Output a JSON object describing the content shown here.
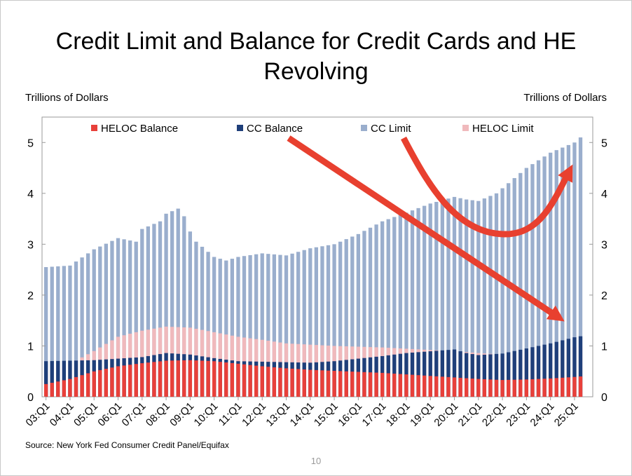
{
  "slide": {
    "title_line1": "Credit Limit and Balance for Credit Cards and HE",
    "title_line2": "Revolving",
    "left_axis_label": "Trillions of Dollars",
    "right_axis_label": "Trillions of Dollars",
    "source": "Source: New York Fed Consumer Credit Panel/Equifax",
    "page_number": "10"
  },
  "colors": {
    "heloc_balance": "#e8403a",
    "cc_balance": "#1f3f7a",
    "cc_limit": "#9aaecd",
    "heloc_limit": "#f0b9bc",
    "arrow": "#e8402f"
  },
  "chart_data": {
    "type": "bar",
    "title": "Credit Limit and Balance for Credit Cards and HE Revolving",
    "ylabel_left": "Trillions of Dollars",
    "ylabel_right": "Trillions of Dollars",
    "ylim": [
      0,
      5.5
    ],
    "yticks": [
      0,
      1,
      2,
      3,
      4,
      5
    ],
    "x_tick_labels": [
      "03:Q1",
      "04:Q1",
      "05:Q1",
      "06:Q1",
      "07:Q1",
      "08:Q1",
      "09:Q1",
      "10:Q1",
      "11:Q1",
      "12:Q1",
      "13:Q1",
      "14:Q1",
      "15:Q1",
      "16:Q1",
      "17:Q1",
      "18:Q1",
      "19:Q1",
      "20:Q1",
      "21:Q1",
      "22:Q1",
      "23:Q1",
      "24:Q1",
      "25:Q1"
    ],
    "start_period": "2003:Q1",
    "end_period": "2025:Q2",
    "legend": [
      "HELOC Balance",
      "CC Balance",
      "CC Limit",
      "HELOC Limit"
    ],
    "series_note": "Overlapping (non-stacked) bars: CC Limit drawn behind HELOC Limit, CC Balance, HELOC Balance in front.",
    "anchors": {
      "cc_limit": [
        [
          0,
          2.55
        ],
        [
          4,
          2.58
        ],
        [
          8,
          2.9
        ],
        [
          12,
          3.12
        ],
        [
          15,
          3.05
        ],
        [
          16,
          3.3
        ],
        [
          19,
          3.45
        ],
        [
          20,
          3.6
        ],
        [
          22,
          3.7
        ],
        [
          23,
          3.55
        ],
        [
          24,
          3.25
        ],
        [
          25,
          3.05
        ],
        [
          28,
          2.75
        ],
        [
          30,
          2.68
        ],
        [
          32,
          2.75
        ],
        [
          36,
          2.82
        ],
        [
          40,
          2.78
        ],
        [
          44,
          2.92
        ],
        [
          48,
          3.0
        ],
        [
          52,
          3.2
        ],
        [
          56,
          3.45
        ],
        [
          60,
          3.62
        ],
        [
          64,
          3.8
        ],
        [
          68,
          3.93
        ],
        [
          70,
          3.88
        ],
        [
          72,
          3.85
        ],
        [
          75,
          4.0
        ],
        [
          78,
          4.3
        ],
        [
          80,
          4.5
        ],
        [
          84,
          4.8
        ],
        [
          88,
          5.0
        ],
        [
          89,
          5.1
        ],
        [
          90,
          5.22
        ]
      ],
      "heloc_limit": [
        [
          0,
          0.5
        ],
        [
          4,
          0.65
        ],
        [
          8,
          0.9
        ],
        [
          12,
          1.18
        ],
        [
          16,
          1.3
        ],
        [
          20,
          1.38
        ],
        [
          24,
          1.36
        ],
        [
          28,
          1.27
        ],
        [
          32,
          1.18
        ],
        [
          36,
          1.12
        ],
        [
          40,
          1.05
        ],
        [
          48,
          1.0
        ],
        [
          56,
          0.97
        ],
        [
          64,
          0.92
        ],
        [
          68,
          0.9
        ],
        [
          72,
          0.86
        ],
        [
          76,
          0.83
        ],
        [
          80,
          0.88
        ],
        [
          84,
          0.95
        ],
        [
          90,
          1.0
        ]
      ],
      "cc_balance": [
        [
          0,
          0.7
        ],
        [
          8,
          0.72
        ],
        [
          16,
          0.78
        ],
        [
          20,
          0.86
        ],
        [
          24,
          0.83
        ],
        [
          28,
          0.76
        ],
        [
          32,
          0.7
        ],
        [
          36,
          0.69
        ],
        [
          40,
          0.68
        ],
        [
          44,
          0.67
        ],
        [
          48,
          0.7
        ],
        [
          52,
          0.75
        ],
        [
          56,
          0.8
        ],
        [
          60,
          0.86
        ],
        [
          68,
          0.93
        ],
        [
          70,
          0.86
        ],
        [
          72,
          0.82
        ],
        [
          76,
          0.85
        ],
        [
          80,
          0.95
        ],
        [
          84,
          1.05
        ],
        [
          88,
          1.17
        ],
        [
          90,
          1.21
        ]
      ],
      "heloc_balance": [
        [
          0,
          0.25
        ],
        [
          4,
          0.35
        ],
        [
          8,
          0.5
        ],
        [
          12,
          0.6
        ],
        [
          16,
          0.66
        ],
        [
          20,
          0.71
        ],
        [
          24,
          0.72
        ],
        [
          28,
          0.7
        ],
        [
          32,
          0.65
        ],
        [
          36,
          0.6
        ],
        [
          40,
          0.56
        ],
        [
          44,
          0.53
        ],
        [
          48,
          0.51
        ],
        [
          52,
          0.49
        ],
        [
          56,
          0.47
        ],
        [
          60,
          0.44
        ],
        [
          64,
          0.41
        ],
        [
          68,
          0.38
        ],
        [
          72,
          0.35
        ],
        [
          76,
          0.33
        ],
        [
          80,
          0.34
        ],
        [
          84,
          0.36
        ],
        [
          88,
          0.39
        ],
        [
          90,
          0.41
        ]
      ]
    },
    "annotations": [
      {
        "type": "arrow",
        "description": "straight red arrow from top-middle down to the CC Balance bars at the right edge"
      },
      {
        "type": "arrow",
        "description": "curved red U-shaped arrow pointing up to the CC Limit bars at the right edge"
      }
    ]
  }
}
